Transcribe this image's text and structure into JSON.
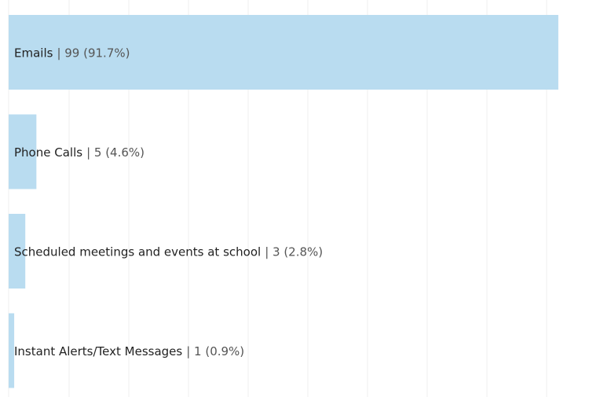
{
  "chart_data": {
    "type": "barh",
    "categories": [
      "Emails",
      "Phone Calls",
      "Scheduled meetings and events at school",
      "Instant Alerts/Text Messages"
    ],
    "values": [
      99,
      5,
      3,
      1
    ],
    "value_labels": [
      "| 99 (91.7%)",
      "| 5 (4.6%)",
      "| 3 (2.8%)",
      "| 1 (0.9%)"
    ],
    "color": "#b9dcf0",
    "xlim": [
      0,
      100
    ]
  }
}
